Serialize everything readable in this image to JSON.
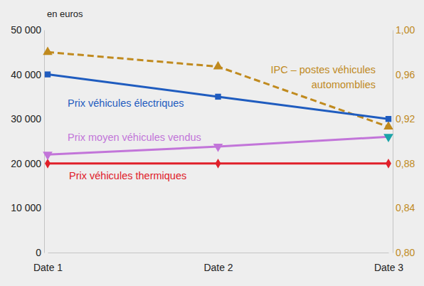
{
  "chart_data": {
    "type": "line",
    "ylabel": "en euros",
    "categories": [
      "Date 1",
      "Date 2",
      "Date 3"
    ],
    "ylim": [
      0,
      50000
    ],
    "yticks": [
      0,
      {
        "value": 10000,
        "label": "10 000"
      },
      {
        "value": 20000,
        "label": "20 000"
      },
      {
        "value": 30000,
        "label": "30 000"
      },
      {
        "value": 40000,
        "label": "40 000"
      },
      {
        "value": 50000,
        "label": "50 000"
      }
    ],
    "y2lim": [
      0.8,
      1.0
    ],
    "y2ticks": [
      {
        "value": 0.8,
        "label": "0,80"
      },
      {
        "value": 0.84,
        "label": "0,84"
      },
      {
        "value": 0.88,
        "label": "0,88"
      },
      {
        "value": 0.92,
        "label": "0,92"
      },
      {
        "value": 0.96,
        "label": "0,96"
      },
      {
        "value": 1.0,
        "label": "1,00"
      }
    ],
    "series": [
      {
        "name": "Prix véhicules électriques",
        "color": "#1f5cbf",
        "marker": "square",
        "line_style": "solid",
        "values": [
          40000,
          35000,
          30000
        ]
      },
      {
        "name": "IPC – postes véhicules automomblies",
        "color": "#c08a1e",
        "marker": "triangle-up",
        "line_style": "dashed",
        "axis": "y2",
        "values": [
          0.98,
          0.967,
          0.913
        ]
      },
      {
        "name": "Prix moyen véhicules vendus",
        "color": "#c275d9",
        "colors": [
          "#c275d9",
          "#c275d9",
          "#1aa3a8"
        ],
        "marker": "triangle-down",
        "line_style": "solid",
        "values": [
          22000,
          23800,
          26000
        ]
      },
      {
        "name": "Prix véhicules thermiques",
        "color": "#e0202a",
        "marker": "diamond",
        "line_style": "solid",
        "values": [
          20000,
          20000,
          20000
        ]
      }
    ]
  }
}
